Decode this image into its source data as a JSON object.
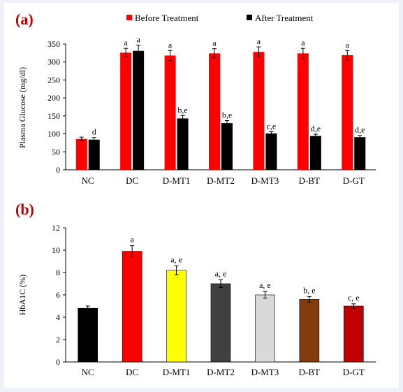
{
  "panel_a_label": "(a)",
  "panel_b_label": "(b)",
  "chart_data": [
    {
      "type": "bar",
      "categories": [
        "NC",
        "DC",
        "D-MT1",
        "D-MT2",
        "D-MT3",
        "D-BT",
        "D-GT"
      ],
      "ylabel": "Plasma Glucose (mg/dl)",
      "ylim": [
        0,
        350
      ],
      "yticks": [
        0,
        50,
        100,
        150,
        200,
        250,
        300,
        350
      ],
      "legend_position": "top",
      "grid": false,
      "series": [
        {
          "name": "Before Treatment",
          "color": "#ff0000",
          "values": [
            86,
            326,
            318,
            324,
            328,
            324,
            319
          ],
          "errors": [
            5,
            12,
            14,
            13,
            14,
            14,
            13
          ],
          "labels": [
            "",
            "a",
            "a",
            "a",
            "a",
            "a",
            "a"
          ]
        },
        {
          "name": "After Treatment",
          "color": "#000000",
          "values": [
            84,
            331,
            143,
            130,
            101,
            94,
            91
          ],
          "errors": [
            6,
            16,
            8,
            7,
            5,
            5,
            5
          ],
          "labels": [
            "d",
            "a",
            "b,e",
            "b,e",
            "c,e",
            "d,e",
            "d,e"
          ]
        }
      ]
    },
    {
      "type": "bar",
      "categories": [
        "NC",
        "DC",
        "D-MT1",
        "D-MT2",
        "D-MT3",
        "D-BT",
        "D-GT"
      ],
      "ylabel": "HbA1C (%)",
      "ylim": [
        0,
        12
      ],
      "yticks": [
        0,
        2,
        4,
        6,
        8,
        10,
        12
      ],
      "grid": false,
      "values": [
        4.8,
        9.9,
        8.2,
        7.0,
        6.0,
        5.6,
        5.0
      ],
      "errors": [
        0.2,
        0.5,
        0.4,
        0.35,
        0.3,
        0.25,
        0.2
      ],
      "colors": [
        "#000000",
        "#ff0000",
        "#ffff00",
        "#404040",
        "#d9d9d9",
        "#843c0c",
        "#c00000"
      ],
      "labels": [
        "",
        "a",
        "a, e",
        "a, e",
        "a, e",
        "b, e",
        "c, e"
      ]
    }
  ]
}
